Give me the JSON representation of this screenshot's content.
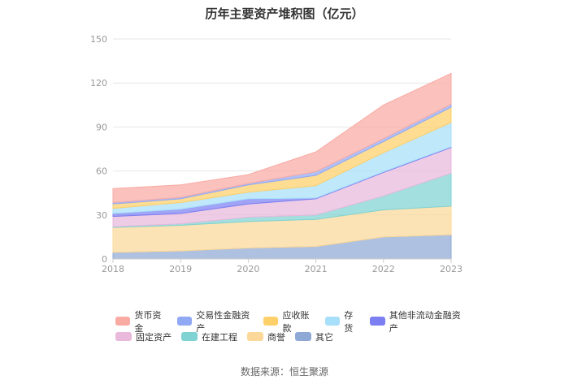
{
  "chart_data": {
    "type": "area",
    "stacked": true,
    "title": "历年主要资产堆积图（亿元）",
    "categories": [
      "2018",
      "2019",
      "2020",
      "2021",
      "2022",
      "2023"
    ],
    "ylim": [
      0,
      150
    ],
    "yticks": [
      0,
      30,
      60,
      90,
      120,
      150
    ],
    "grid": true,
    "legend_position": "bottom",
    "series": [
      {
        "name": "其它",
        "color": "#8fa9d6",
        "values": [
          4.5,
          5.5,
          7.5,
          8.5,
          15,
          16.5
        ]
      },
      {
        "name": "商誉",
        "color": "#fbd899",
        "values": [
          17,
          17.5,
          18,
          18.5,
          18.5,
          19.5
        ]
      },
      {
        "name": "在建工程",
        "color": "#7fd3d3",
        "values": [
          0.5,
          1,
          3,
          3,
          9.5,
          22.5
        ]
      },
      {
        "name": "固定资产",
        "color": "#e9b9dc",
        "values": [
          7,
          7,
          9,
          11,
          16,
          17.5
        ]
      },
      {
        "name": "其他非流动金融资产",
        "color": "#7b7ff2",
        "values": [
          2,
          3,
          3.5,
          0.5,
          0.5,
          0.5
        ]
      },
      {
        "name": "存货",
        "color": "#a7dffa",
        "values": [
          3.5,
          4.5,
          4.5,
          8.5,
          13,
          16.5
        ]
      },
      {
        "name": "应收账款",
        "color": "#fdd06a",
        "values": [
          3,
          2.5,
          5,
          7,
          7.5,
          10.5
        ]
      },
      {
        "name": "交易性金融资产",
        "color": "#91a8f5",
        "values": [
          1,
          1,
          1,
          2.5,
          2,
          2
        ]
      },
      {
        "name": "货币资金",
        "color": "#f9aaa3",
        "values": [
          9.5,
          8.5,
          6,
          13.5,
          23,
          21
        ]
      }
    ]
  },
  "legend": {
    "row1": [
      "货币资金",
      "交易性金融资产",
      "应收账款",
      "存货",
      "其他非流动金融资产"
    ],
    "row2": [
      "固定资产",
      "在建工程",
      "商誉",
      "其它"
    ],
    "colors": {
      "货币资金": "#f9aaa3",
      "交易性金融资产": "#91a8f5",
      "应收账款": "#fdd06a",
      "存货": "#a7dffa",
      "其他非流动金融资产": "#7b7ff2",
      "固定资产": "#e9b9dc",
      "在建工程": "#7fd3d3",
      "商誉": "#fbd899",
      "其它": "#8fa9d6"
    }
  },
  "source": "数据来源：恒生聚源"
}
